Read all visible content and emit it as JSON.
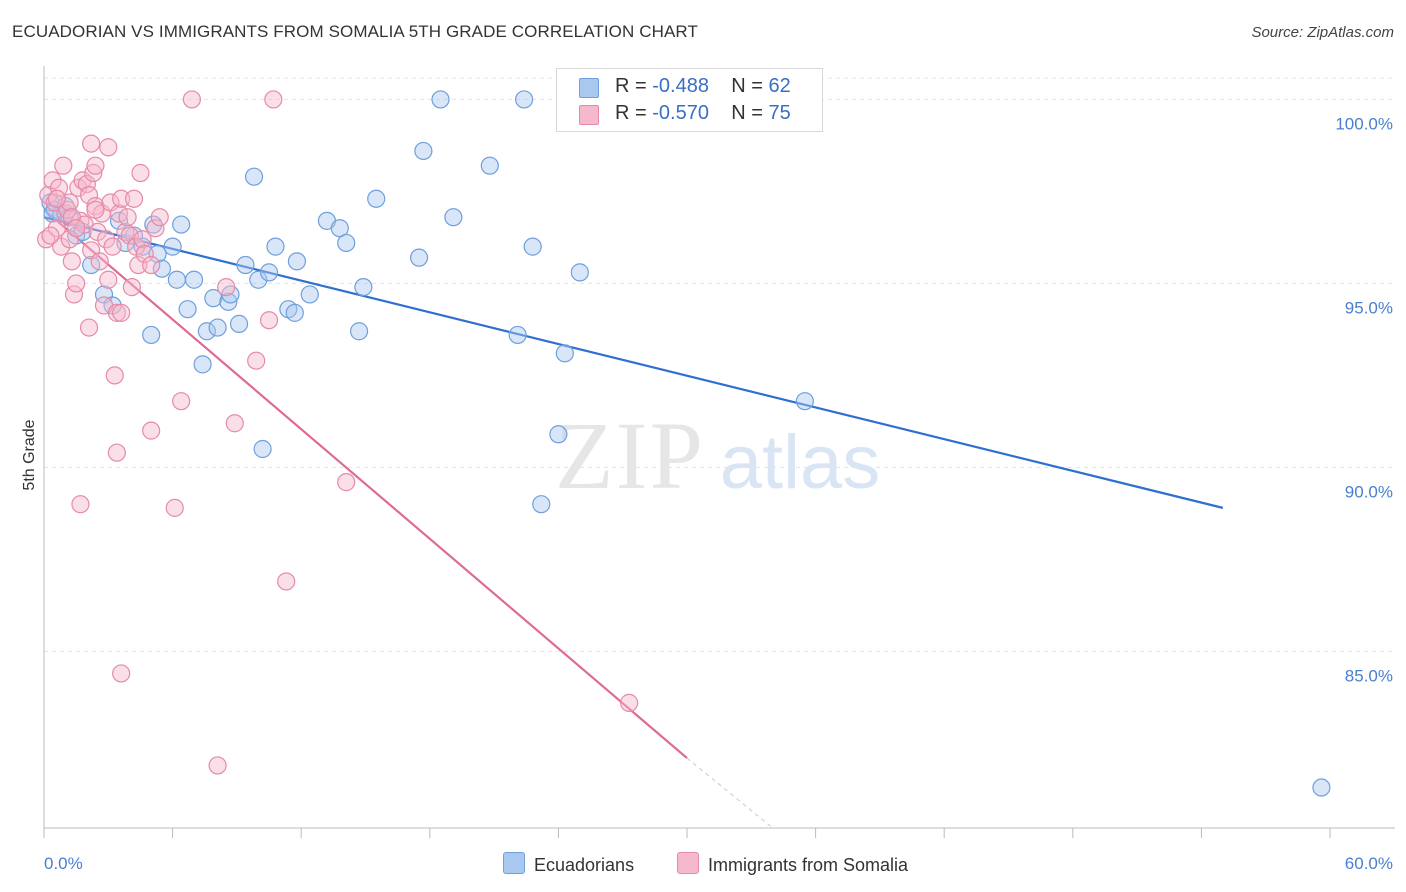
{
  "title": "ECUADORIAN VS IMMIGRANTS FROM SOMALIA 5TH GRADE CORRELATION CHART",
  "source": "Source: ZipAtlas.com",
  "watermark": {
    "zip": "ZIP",
    "atlas": "atlas"
  },
  "legend": {
    "rows": [
      {
        "r_label": "R = ",
        "r_value": "-0.488",
        "n_label": "N = ",
        "n_value": "62",
        "color": "#a9c8f0"
      },
      {
        "r_label": "R = ",
        "r_value": "-0.570",
        "n_label": "N = ",
        "n_value": "75",
        "color": "#f6b8cc"
      }
    ]
  },
  "bottom_legend": [
    {
      "label": "Ecuadorians",
      "color": "#a9c8f0"
    },
    {
      "label": "Immigrants from Somalia",
      "color": "#f6b8cc"
    }
  ],
  "chart_data": {
    "type": "scatter",
    "title": "ECUADORIAN VS IMMIGRANTS FROM SOMALIA 5TH GRADE CORRELATION CHART",
    "xlabel": "",
    "ylabel": "5th Grade",
    "xlim": [
      0,
      60
    ],
    "ylim": [
      80.2,
      100.8
    ],
    "x_tick_labels": [
      {
        "value": 0,
        "label": "0.0%"
      },
      {
        "value": 60,
        "label": "60.0%"
      }
    ],
    "y_tick_labels": [
      {
        "value": 100,
        "label": "100.0%"
      },
      {
        "value": 95,
        "label": "95.0%"
      },
      {
        "value": 90,
        "label": "90.0%"
      },
      {
        "value": 85,
        "label": "85.0%"
      }
    ],
    "x_minor_ticks": [
      0,
      6,
      12,
      18,
      24,
      30,
      36,
      42,
      48,
      54,
      60
    ],
    "grid": true,
    "series": [
      {
        "name": "Ecuadorians",
        "color": "#a9c8f0",
        "stroke": "#6f9fdc",
        "trend": {
          "x": [
            0,
            55
          ],
          "y": [
            96.8,
            88.9
          ],
          "color": "#2f6fd0"
        },
        "points": [
          [
            0.3,
            97.2
          ],
          [
            0.5,
            97.0
          ],
          [
            0.8,
            96.9
          ],
          [
            1.0,
            97.1
          ],
          [
            1.2,
            96.8
          ],
          [
            1.5,
            96.3
          ],
          [
            1.8,
            96.4
          ],
          [
            2.2,
            95.5
          ],
          [
            2.8,
            94.7
          ],
          [
            3.2,
            94.4
          ],
          [
            3.5,
            96.7
          ],
          [
            3.8,
            96.1
          ],
          [
            4.2,
            96.3
          ],
          [
            4.6,
            96.0
          ],
          [
            5.0,
            93.6
          ],
          [
            5.1,
            96.6
          ],
          [
            5.3,
            95.8
          ],
          [
            5.5,
            95.4
          ],
          [
            6.0,
            96.0
          ],
          [
            6.2,
            95.1
          ],
          [
            6.4,
            96.6
          ],
          [
            6.7,
            94.3
          ],
          [
            7.0,
            95.1
          ],
          [
            7.4,
            92.8
          ],
          [
            7.6,
            93.7
          ],
          [
            7.9,
            94.6
          ],
          [
            8.1,
            93.8
          ],
          [
            8.6,
            94.5
          ],
          [
            8.7,
            94.7
          ],
          [
            9.1,
            93.9
          ],
          [
            9.4,
            95.5
          ],
          [
            9.8,
            97.9
          ],
          [
            10.0,
            95.1
          ],
          [
            10.2,
            90.5
          ],
          [
            10.5,
            95.3
          ],
          [
            10.8,
            96.0
          ],
          [
            11.4,
            94.3
          ],
          [
            11.7,
            94.2
          ],
          [
            11.8,
            95.6
          ],
          [
            12.4,
            94.7
          ],
          [
            13.2,
            96.7
          ],
          [
            13.8,
            96.5
          ],
          [
            14.1,
            96.1
          ],
          [
            14.7,
            93.7
          ],
          [
            14.9,
            94.9
          ],
          [
            15.5,
            97.3
          ],
          [
            17.5,
            95.7
          ],
          [
            17.7,
            98.6
          ],
          [
            18.5,
            100.0
          ],
          [
            19.1,
            96.8
          ],
          [
            20.8,
            98.2
          ],
          [
            22.1,
            93.6
          ],
          [
            22.4,
            100.0
          ],
          [
            22.8,
            96.0
          ],
          [
            23.2,
            89.0
          ],
          [
            24.0,
            90.9
          ],
          [
            24.3,
            93.1
          ],
          [
            25.0,
            95.3
          ],
          [
            25.1,
            99.7
          ],
          [
            35.5,
            91.8
          ],
          [
            59.6,
            81.3
          ],
          [
            0.4,
            96.9
          ]
        ]
      },
      {
        "name": "Immigrants from Somalia",
        "color": "#f6b8cc",
        "stroke": "#e58aa8",
        "trend": {
          "x": [
            0,
            30
          ],
          "y": [
            97.0,
            82.1
          ],
          "color": "#e06a96"
        },
        "trend_dashed": {
          "x": [
            30,
            34
          ],
          "y": [
            82.1,
            80.2
          ]
        },
        "points": [
          [
            0.1,
            96.2
          ],
          [
            0.2,
            97.4
          ],
          [
            0.4,
            97.8
          ],
          [
            0.5,
            97.2
          ],
          [
            0.6,
            96.5
          ],
          [
            0.7,
            97.6
          ],
          [
            0.8,
            96.0
          ],
          [
            0.9,
            98.2
          ],
          [
            1.0,
            96.9
          ],
          [
            1.1,
            97.0
          ],
          [
            1.2,
            96.2
          ],
          [
            1.3,
            95.6
          ],
          [
            1.4,
            94.7
          ],
          [
            1.5,
            95.0
          ],
          [
            1.6,
            97.6
          ],
          [
            1.7,
            96.7
          ],
          [
            1.8,
            97.8
          ],
          [
            1.9,
            96.6
          ],
          [
            2.0,
            97.7
          ],
          [
            2.1,
            97.4
          ],
          [
            2.2,
            95.9
          ],
          [
            2.3,
            98.0
          ],
          [
            2.4,
            97.1
          ],
          [
            2.5,
            96.4
          ],
          [
            2.1,
            93.8
          ],
          [
            2.2,
            98.8
          ],
          [
            2.4,
            98.2
          ],
          [
            2.6,
            95.6
          ],
          [
            2.7,
            96.9
          ],
          [
            2.8,
            94.4
          ],
          [
            2.9,
            96.2
          ],
          [
            3.0,
            95.1
          ],
          [
            3.0,
            98.7
          ],
          [
            3.1,
            97.2
          ],
          [
            3.2,
            96.0
          ],
          [
            3.3,
            92.5
          ],
          [
            3.4,
            94.2
          ],
          [
            3.5,
            96.9
          ],
          [
            3.6,
            97.3
          ],
          [
            3.8,
            96.4
          ],
          [
            3.9,
            96.8
          ],
          [
            4.0,
            96.3
          ],
          [
            4.1,
            94.9
          ],
          [
            4.2,
            97.3
          ],
          [
            4.3,
            96.0
          ],
          [
            4.4,
            95.5
          ],
          [
            4.5,
            98.0
          ],
          [
            4.6,
            96.2
          ],
          [
            4.7,
            95.8
          ],
          [
            5.0,
            95.5
          ],
          [
            5.2,
            96.5
          ],
          [
            5.4,
            96.8
          ],
          [
            5.0,
            91.0
          ],
          [
            6.1,
            88.9
          ],
          [
            6.4,
            91.8
          ],
          [
            6.9,
            100.0
          ],
          [
            8.1,
            81.9
          ],
          [
            8.5,
            94.9
          ],
          [
            8.9,
            91.2
          ],
          [
            9.9,
            92.9
          ],
          [
            10.5,
            94.0
          ],
          [
            10.7,
            100.0
          ],
          [
            11.3,
            86.9
          ],
          [
            14.1,
            89.6
          ],
          [
            27.3,
            83.6
          ],
          [
            1.7,
            89.0
          ],
          [
            3.4,
            90.4
          ],
          [
            3.6,
            84.4
          ],
          [
            1.2,
            97.2
          ],
          [
            0.6,
            97.3
          ],
          [
            1.3,
            96.8
          ],
          [
            3.6,
            94.2
          ],
          [
            2.4,
            97.0
          ],
          [
            1.5,
            96.5
          ],
          [
            0.3,
            96.3
          ]
        ]
      }
    ]
  }
}
